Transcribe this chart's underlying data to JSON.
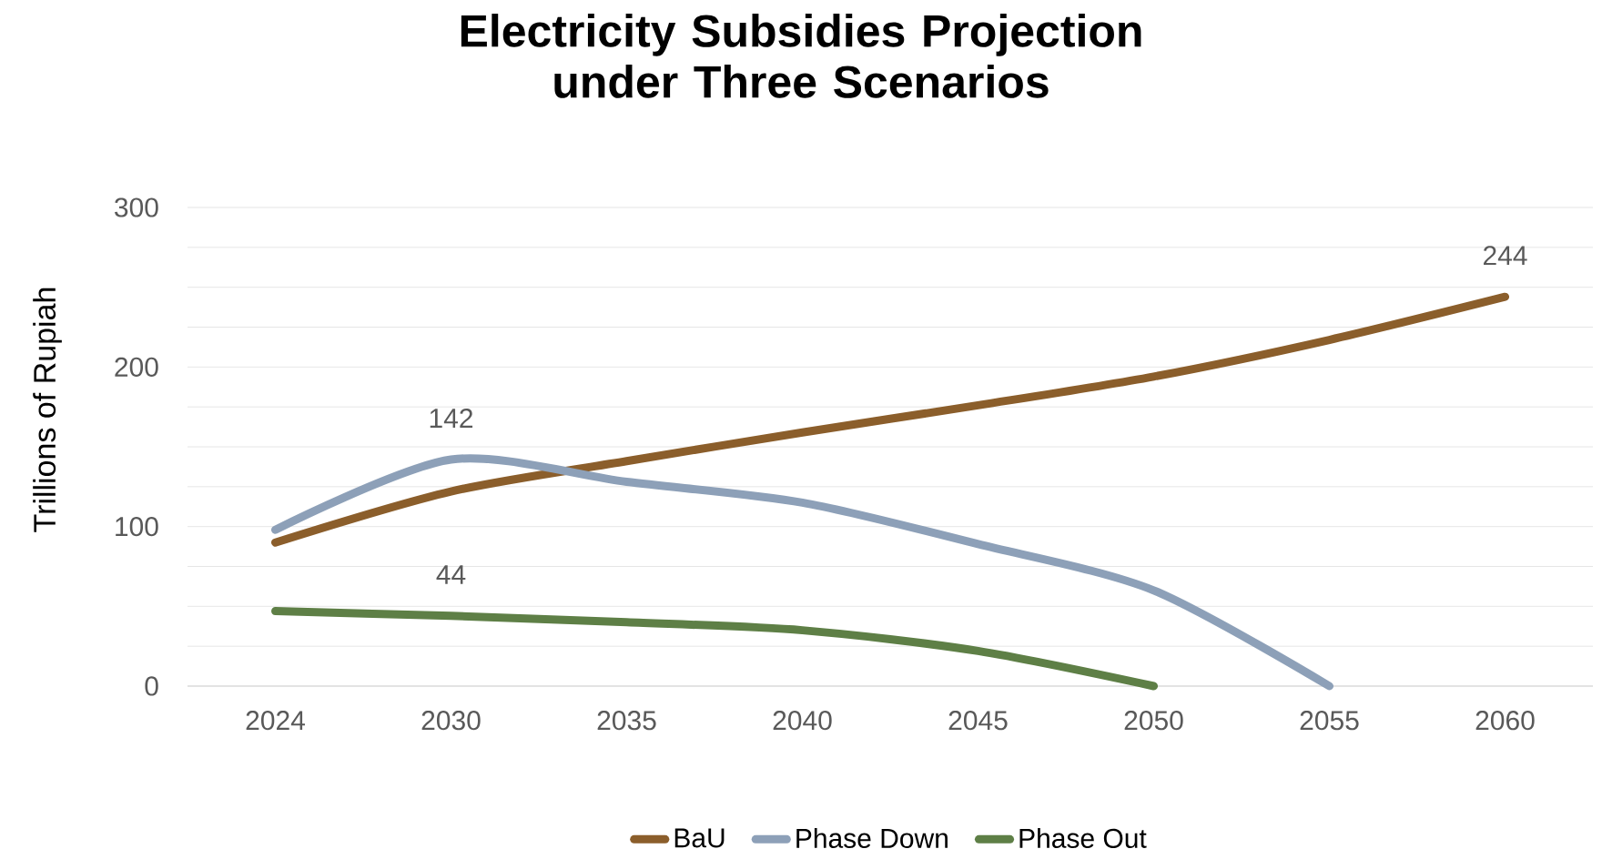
{
  "chart_data": {
    "type": "line",
    "title": "Electricity Subsidies Projection under Three Scenarios",
    "ylabel": "Trillions of Rupiah",
    "categories": [
      "2024",
      "2030",
      "2035",
      "2040",
      "2045",
      "2050",
      "2055",
      "2060"
    ],
    "series": [
      {
        "name": "BaU",
        "color": "#8b5e2b",
        "values": [
          90,
          122,
          141,
          159,
          176,
          194,
          217,
          244
        ],
        "value_labels": [
          null,
          null,
          null,
          null,
          null,
          null,
          null,
          "244"
        ]
      },
      {
        "name": "Phase Down",
        "color": "#8da0b8",
        "values": [
          98,
          142,
          128,
          115,
          89,
          60,
          0,
          null
        ],
        "value_labels": [
          null,
          "142",
          null,
          null,
          null,
          null,
          null,
          null
        ]
      },
      {
        "name": "Phase Out",
        "color": "#5e7f46",
        "values": [
          47,
          44,
          40,
          35,
          22,
          0,
          null,
          null
        ],
        "value_labels": [
          null,
          "44",
          null,
          null,
          null,
          null,
          null,
          null
        ]
      }
    ],
    "ylim": [
      0,
      300
    ],
    "yticks": [
      0,
      {
        "value": 25,
        "label": null
      },
      {
        "value": 50,
        "label": null
      },
      {
        "value": 75,
        "label": null
      },
      100,
      {
        "value": 125,
        "label": null
      },
      {
        "value": 150,
        "label": null
      },
      {
        "value": 175,
        "label": null
      },
      200,
      {
        "value": 225,
        "label": null
      },
      {
        "value": 250,
        "label": null
      },
      {
        "value": 275,
        "label": null
      },
      300
    ],
    "grid": "y",
    "legend": "bottom",
    "marker": "none",
    "line_style": "solid"
  }
}
